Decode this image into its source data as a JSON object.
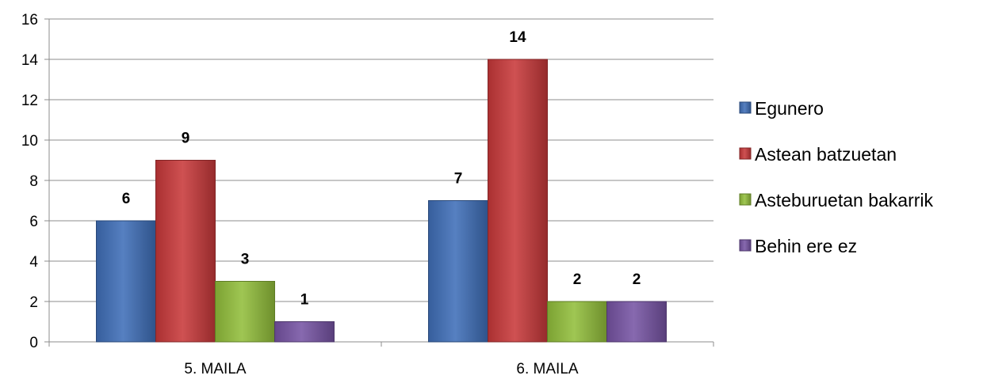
{
  "chart_data": {
    "type": "bar",
    "categories": [
      "5. MAILA",
      "6. MAILA"
    ],
    "series": [
      {
        "name": "Egunero",
        "values": [
          6,
          7
        ],
        "color": "#3F6FB8"
      },
      {
        "name": "Astean batzuetan",
        "values": [
          9,
          14
        ],
        "color": "#C8393A"
      },
      {
        "name": "Asteburuetan bakarrik",
        "values": [
          3,
          2
        ],
        "color": "#92BE3B"
      },
      {
        "name": "Behin ere ez",
        "values": [
          1,
          2
        ],
        "color": "#7754A4"
      }
    ],
    "ylim": [
      0,
      16
    ],
    "yticks": [
      0,
      2,
      4,
      6,
      8,
      10,
      12,
      14,
      16
    ],
    "grid": true,
    "legend_position": "right",
    "data_labels": true
  }
}
